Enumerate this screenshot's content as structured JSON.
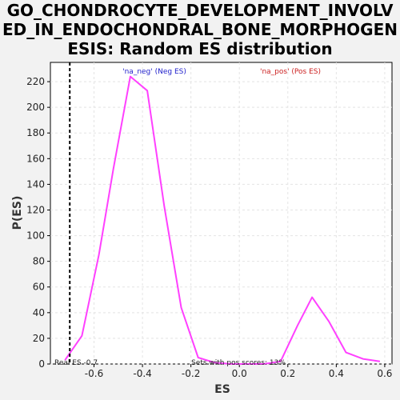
{
  "chart_data": {
    "type": "line",
    "title_lines": [
      "GO_CHONDROCYTE_DEVELOPMENT_INVOLV",
      "ED_IN_ENDOCHONDRAL_BONE_MORPHOGEN",
      "ESIS: Random ES distribution"
    ],
    "xlabel": "ES",
    "ylabel": "P(ES)",
    "xlim": [
      -0.78,
      0.63
    ],
    "ylim": [
      0,
      235
    ],
    "x_ticks": [
      -0.6,
      -0.4,
      -0.2,
      0.0,
      0.2,
      0.4,
      0.6
    ],
    "x_tick_labels": [
      "-0.6",
      "-0.4",
      "-0.2",
      "0.0",
      "0.2",
      "0.4",
      "0.6"
    ],
    "y_ticks": [
      0,
      20,
      40,
      60,
      80,
      100,
      120,
      140,
      160,
      180,
      200,
      220
    ],
    "y_tick_labels": [
      "0",
      "20",
      "40",
      "60",
      "80",
      "100",
      "120",
      "140",
      "160",
      "180",
      "200",
      "220"
    ],
    "grid": true,
    "series": [
      {
        "color": "#ff40ff",
        "x": [
          -0.72,
          -0.65,
          -0.58,
          -0.52,
          -0.45,
          -0.38,
          -0.31,
          -0.24,
          -0.17,
          -0.1,
          -0.03,
          0.03,
          0.1,
          0.17,
          0.24,
          0.3,
          0.37,
          0.44,
          0.51,
          0.58
        ],
        "y": [
          3,
          22,
          85,
          152,
          224,
          213,
          123,
          44,
          5,
          1,
          0,
          0,
          0,
          2,
          30,
          52,
          33,
          9,
          4,
          2
        ]
      }
    ],
    "real_es": -0.7,
    "annotations": {
      "neg_label": "'na_neg' (Neg ES)",
      "pos_label": "'na_pos' (Pos ES)",
      "real_es_label": "Real ES -0.7",
      "pos_scores_label": "Sets with pos scores: 13%"
    },
    "colors": {
      "neg_label": "#2222cc",
      "pos_label": "#cc2222",
      "real_es_line": "#000000",
      "grid": "#e4e4e4",
      "plot_bg": "#ffffff",
      "page_bg": "#f2f2f2"
    }
  }
}
